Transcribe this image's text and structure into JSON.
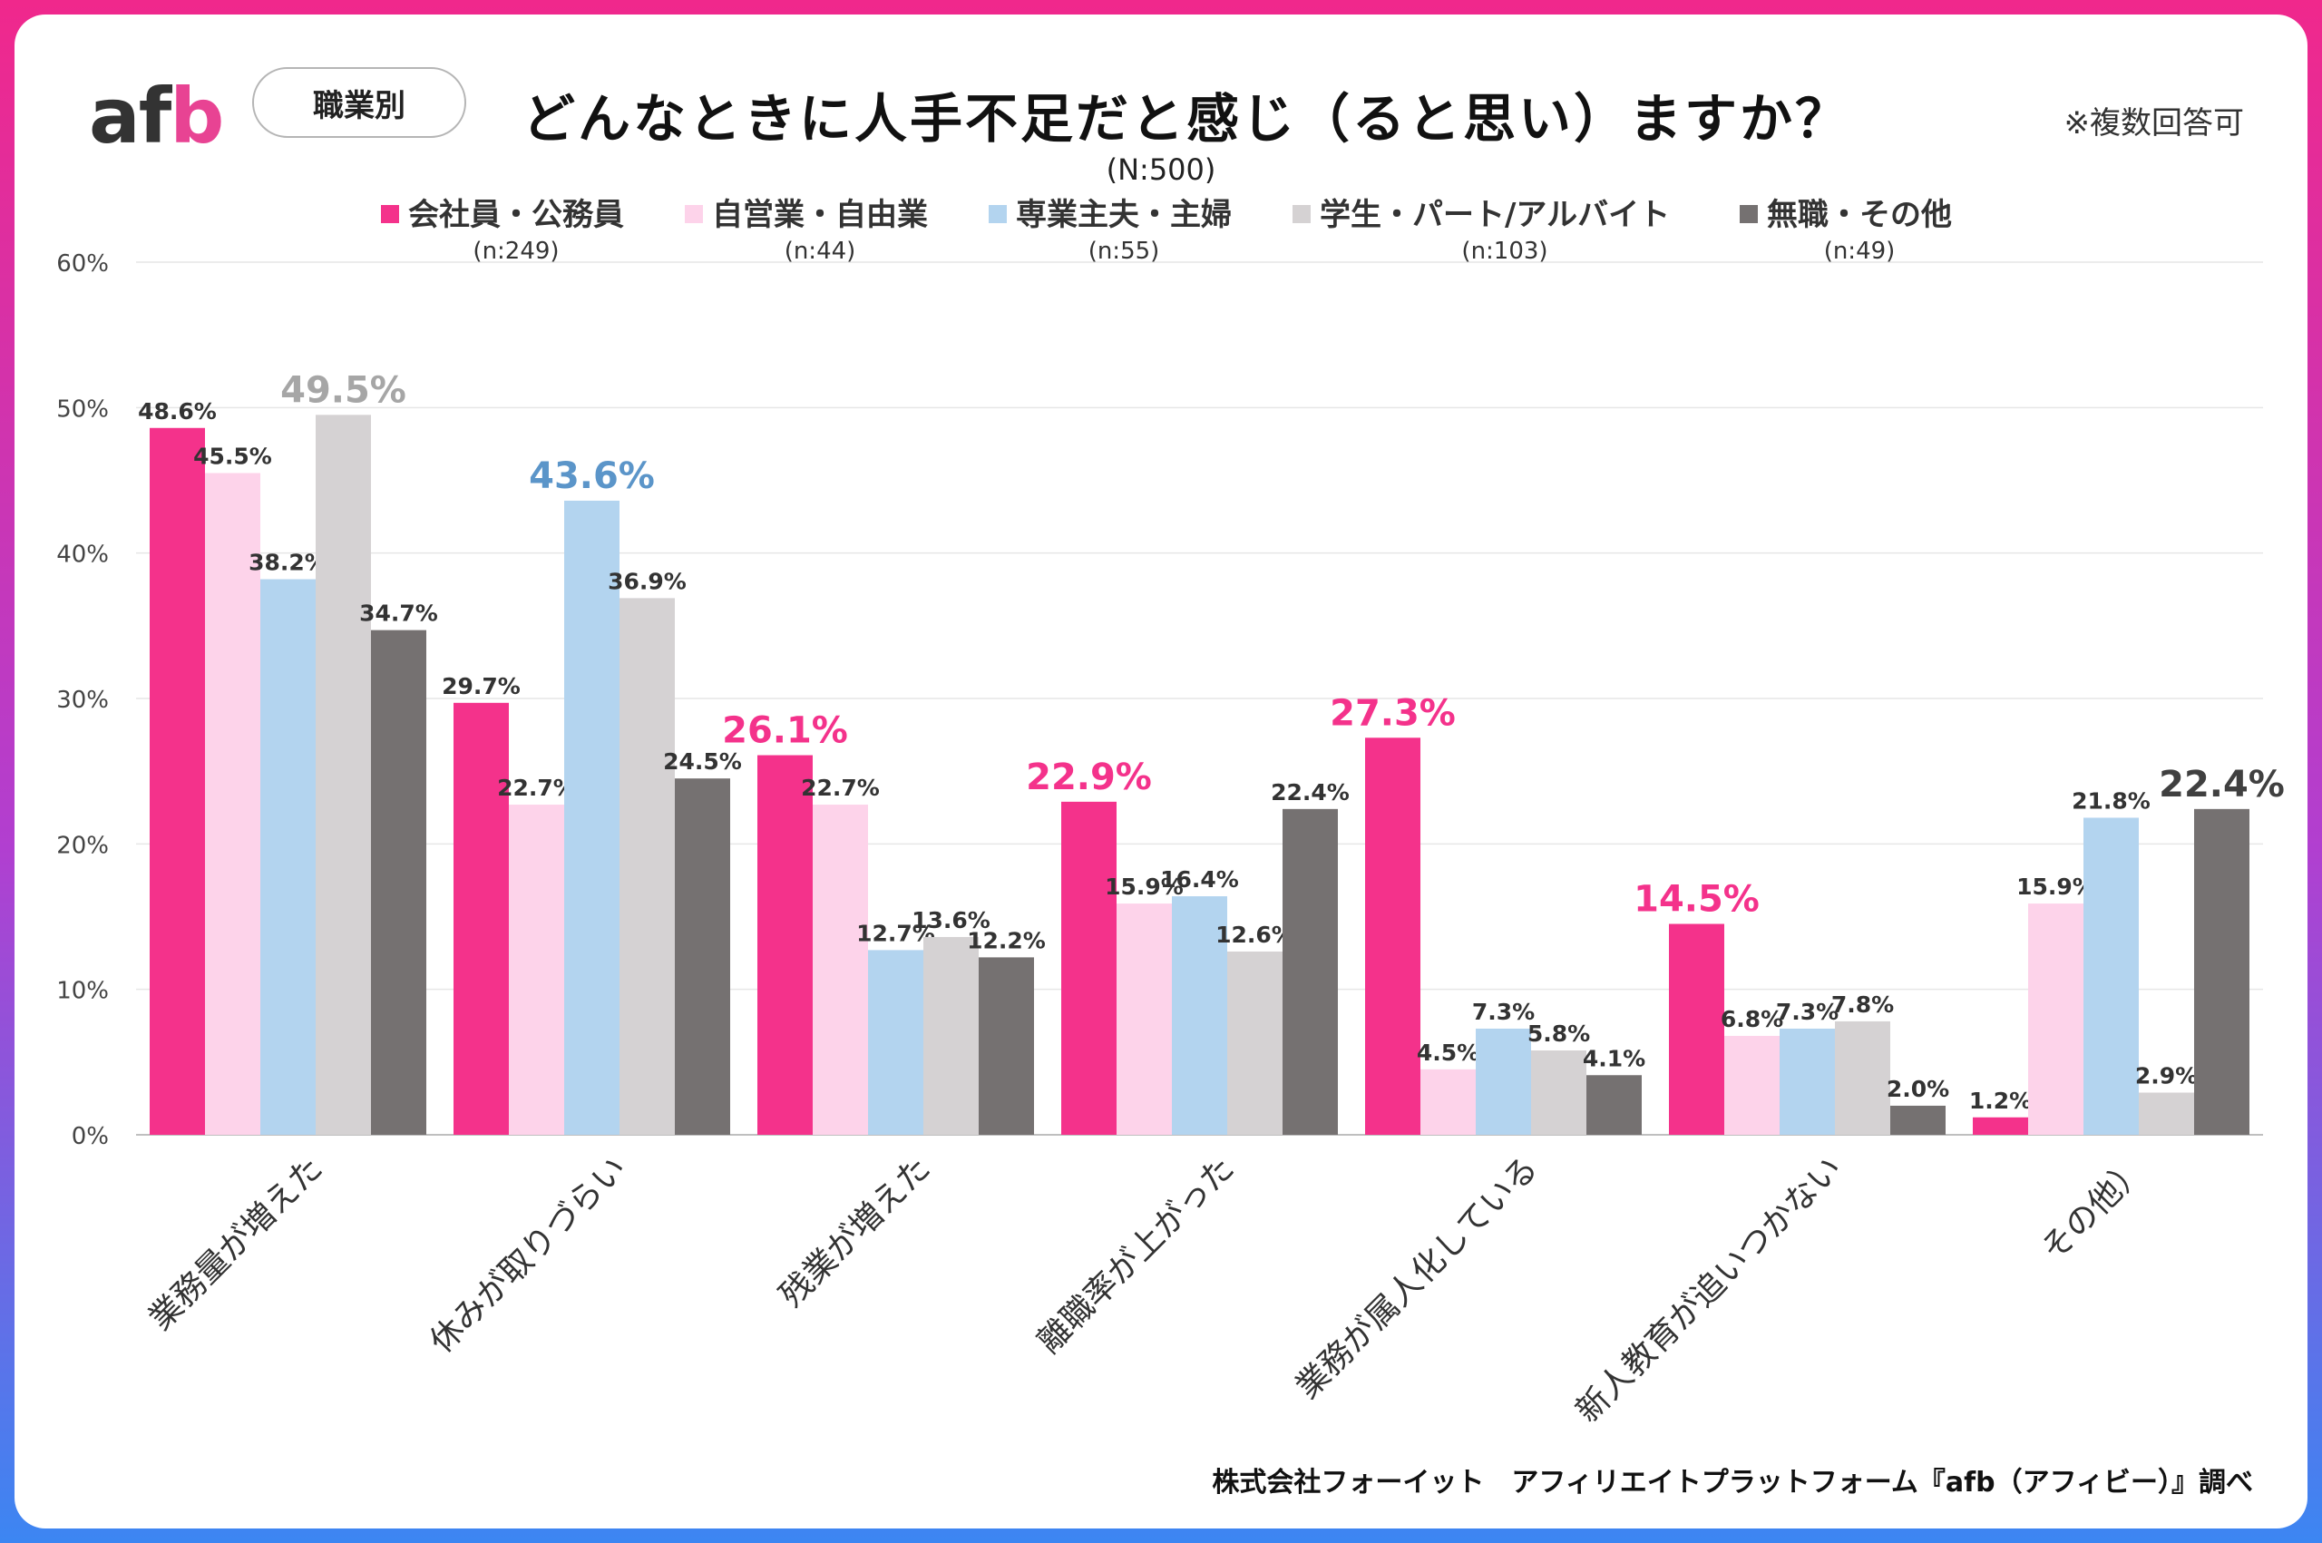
{
  "header": {
    "logo": {
      "a": "a",
      "f": "f",
      "b": "b"
    },
    "category": "職業別",
    "title": "どんなときに人手不足だと感じ（ると思い）ますか？",
    "note": "※複数回答可"
  },
  "footer": "株式会社フォーイット　アフィリエイトプラットフォーム『afb（アフィビー）』調べ",
  "chart_data": {
    "type": "bar",
    "subtitle": "(N:500)",
    "ylim": [
      0,
      60
    ],
    "yticks": [
      {
        "value": 0,
        "label": "0%"
      },
      {
        "value": 10,
        "label": "10%"
      },
      {
        "value": 20,
        "label": "20%"
      },
      {
        "value": 30,
        "label": "30%"
      },
      {
        "value": 40,
        "label": "40%"
      },
      {
        "value": 50,
        "label": "50%"
      },
      {
        "value": 60,
        "label": "60%"
      }
    ],
    "grid": true,
    "legend_position": "top",
    "categories": [
      "業務量が増えた",
      "休みが取りづらい",
      "残業が増えた",
      "離職率が上がった",
      "業務が属人化している",
      "新人教育が追いつかない",
      "その他）"
    ],
    "series": [
      {
        "name": "会社員・公務員",
        "n": "(n:249)",
        "color": "#f4328b",
        "values": [
          48.6,
          29.7,
          26.1,
          22.9,
          27.3,
          14.5,
          1.2
        ],
        "labels": [
          "48.6%",
          "29.7%",
          "26.1%",
          "22.9%",
          "27.3%",
          "14.5%",
          "1.2%"
        ]
      },
      {
        "name": "自営業・自由業",
        "n": "(n:44)",
        "color": "#fdd3ea",
        "values": [
          45.5,
          22.7,
          22.7,
          15.9,
          4.5,
          6.8,
          15.9
        ],
        "labels": [
          "45.5%",
          "22.7%",
          "22.7%",
          "15.9%",
          "4.5%",
          "6.8%",
          "15.9%"
        ]
      },
      {
        "name": "専業主夫・主婦",
        "n": "(n:55)",
        "color": "#b3d4ef",
        "values": [
          38.2,
          43.6,
          12.7,
          16.4,
          7.3,
          7.3,
          21.8
        ],
        "labels": [
          "38.2%",
          "43.6%",
          "12.7%",
          "16.4%",
          "7.3%",
          "7.3%",
          "21.8%"
        ]
      },
      {
        "name": "学生・パート/アルバイト",
        "n": "(n:103)",
        "color": "#d5d2d3",
        "values": [
          49.5,
          36.9,
          13.6,
          12.6,
          5.8,
          7.8,
          2.9
        ],
        "labels": [
          "49.5%",
          "36.9%",
          "13.6%",
          "12.6%",
          "5.8%",
          "7.8%",
          "2.9%"
        ]
      },
      {
        "name": "無職・その他",
        "n": "(n:49)",
        "color": "#757171",
        "values": [
          34.7,
          24.5,
          12.2,
          22.4,
          4.1,
          2.0,
          22.4
        ],
        "labels": [
          "34.7%",
          "24.5%",
          "12.2%",
          "22.4%",
          "4.1%",
          "2.0%",
          "22.4%"
        ]
      }
    ],
    "highlight_color": "#5b95c9",
    "highlights": [
      [
        0,
        3
      ],
      [
        1,
        2
      ],
      [
        2,
        0
      ],
      [
        3,
        0
      ],
      [
        4,
        0
      ],
      [
        5,
        0
      ],
      [
        6,
        4
      ]
    ]
  }
}
